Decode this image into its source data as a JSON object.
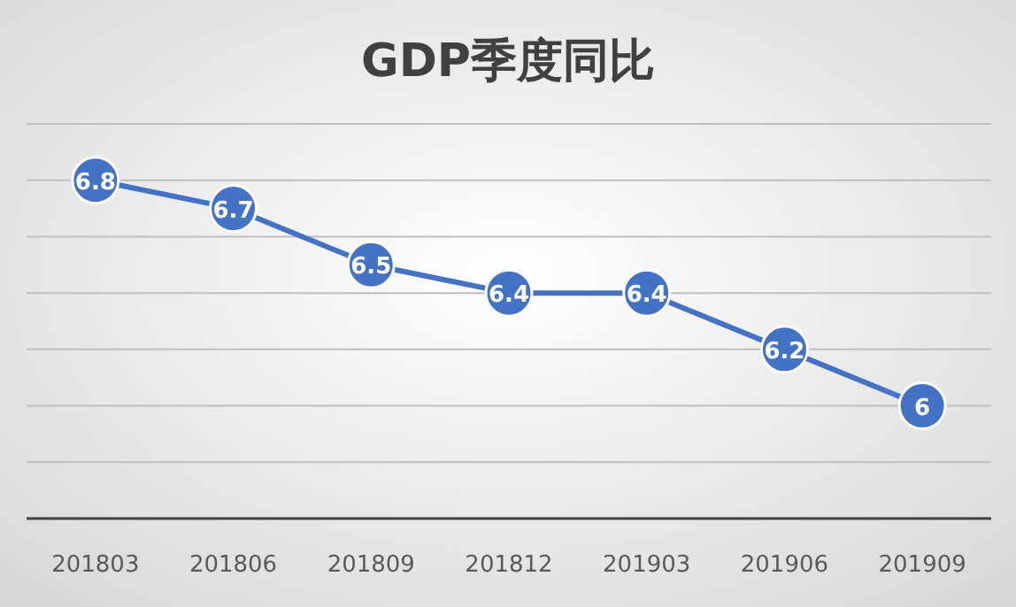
{
  "chart_data": {
    "type": "line",
    "title": "GDP季度同比",
    "categories": [
      "201803",
      "201806",
      "201809",
      "201812",
      "201903",
      "201906",
      "201909"
    ],
    "series": [
      {
        "color": "#4472c4",
        "values": [
          6.8,
          6.7,
          6.5,
          6.4,
          6.4,
          6.2,
          6.0
        ]
      }
    ],
    "ylim": [
      5.6,
      7.0
    ],
    "yticks": [
      {
        "value": 5.6,
        "label": null
      },
      {
        "value": 5.8,
        "label": null
      },
      {
        "value": 6.0,
        "label": null
      },
      {
        "value": 6.2,
        "label": null
      },
      {
        "value": 6.4,
        "label": null
      },
      {
        "value": 6.6,
        "label": null
      },
      {
        "value": 6.8,
        "label": null
      },
      {
        "value": 7.0,
        "label": null
      }
    ],
    "tick_labels": "x",
    "grid": "y",
    "marker": "circle",
    "line_style": "solid",
    "data_labels": true
  }
}
